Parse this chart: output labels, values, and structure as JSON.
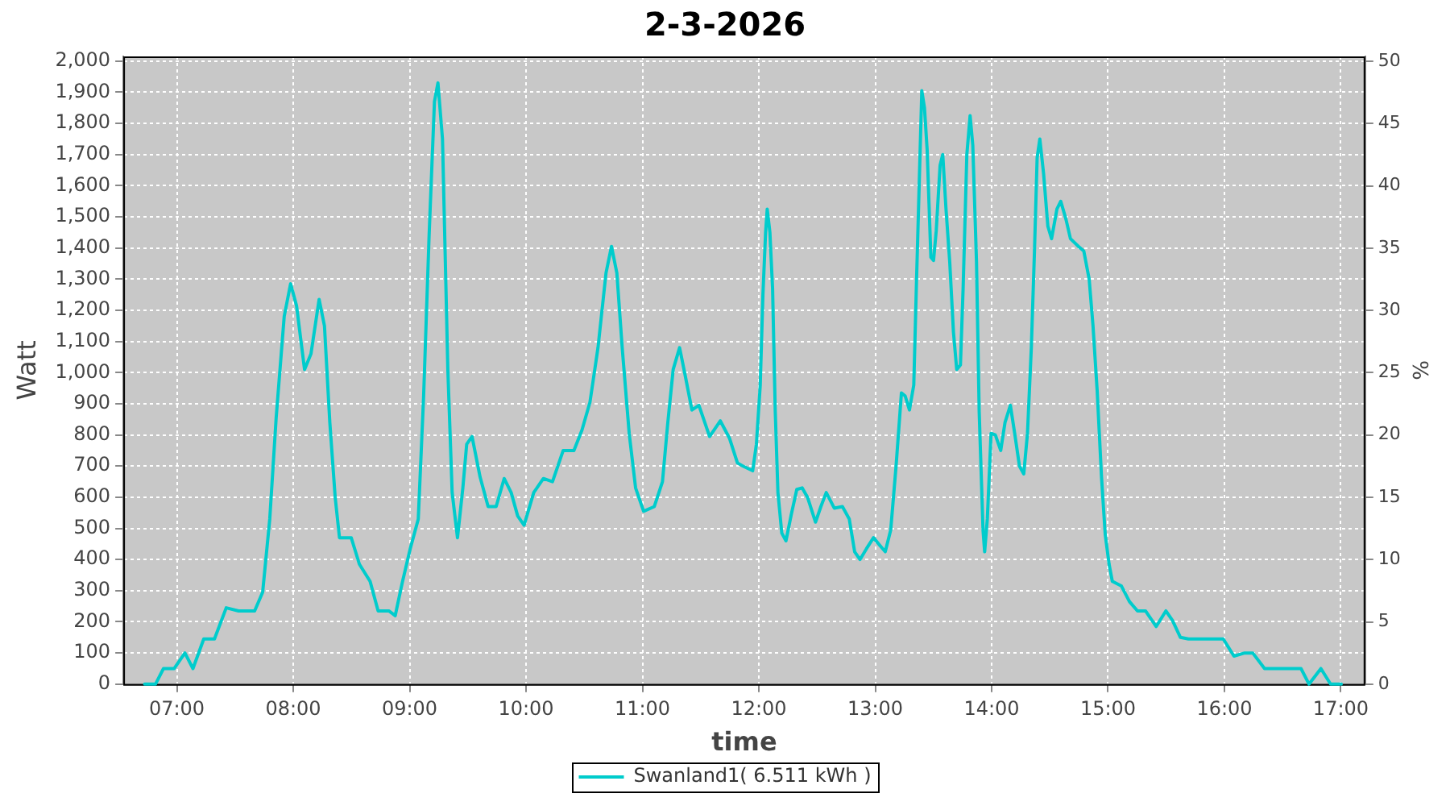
{
  "chart_data": {
    "type": "line",
    "title": "2-3-2026",
    "xlabel": "time",
    "ylabel": "Watt",
    "y2label": "%",
    "x": [
      6.723,
      6.816,
      6.885,
      6.977,
      7.069,
      7.138,
      7.231,
      7.323,
      7.424,
      7.53,
      7.668,
      7.737,
      7.798,
      7.853,
      7.922,
      7.977,
      8.028,
      8.097,
      8.152,
      8.222,
      8.268,
      8.314,
      8.36,
      8.397,
      8.452,
      8.498,
      8.568,
      8.66,
      8.729,
      8.821,
      8.876,
      8.936,
      9.005,
      9.074,
      9.12,
      9.167,
      9.213,
      9.243,
      9.282,
      9.328,
      9.365,
      9.411,
      9.457,
      9.49,
      9.536,
      9.605,
      9.674,
      9.743,
      9.812,
      9.872,
      9.928,
      9.983,
      10.066,
      10.149,
      10.227,
      10.319,
      10.411,
      10.48,
      10.549,
      10.618,
      10.687,
      10.734,
      10.78,
      10.826,
      10.886,
      10.941,
      11.01,
      11.102,
      11.172,
      11.218,
      11.264,
      11.319,
      11.365,
      11.425,
      11.485,
      11.577,
      11.669,
      11.747,
      11.816,
      11.863,
      11.947,
      11.979,
      12.012,
      12.035,
      12.058,
      12.072,
      12.095,
      12.118,
      12.141,
      12.164,
      12.197,
      12.233,
      12.279,
      12.326,
      12.372,
      12.418,
      12.487,
      12.533,
      12.579,
      12.648,
      12.718,
      12.777,
      12.823,
      12.869,
      12.925,
      12.985,
      13.04,
      13.086,
      13.133,
      13.179,
      13.225,
      13.257,
      13.294,
      13.331,
      13.354,
      13.377,
      13.4,
      13.423,
      13.446,
      13.478,
      13.501,
      13.524,
      13.557,
      13.58,
      13.608,
      13.64,
      13.672,
      13.7,
      13.732,
      13.755,
      13.787,
      13.815,
      13.838,
      13.87,
      13.893,
      13.926,
      13.94,
      13.963,
      13.995,
      14.032,
      14.078,
      14.115,
      14.161,
      14.198,
      14.239,
      14.276,
      14.308,
      14.341,
      14.368,
      14.391,
      14.414,
      14.446,
      14.483,
      14.515,
      14.561,
      14.594,
      14.64,
      14.677,
      14.746,
      14.792,
      14.838,
      14.871,
      14.907,
      14.944,
      14.976,
      15.009,
      15.037,
      15.115,
      15.184,
      15.253,
      15.322,
      15.414,
      15.497,
      15.553,
      15.622,
      15.691,
      15.875,
      15.99,
      16.082,
      16.174,
      16.243,
      16.345,
      16.52,
      16.658,
      16.727,
      16.829,
      16.912,
      17.004
    ],
    "series": [
      {
        "name": "Swanland1( 6.511 kWh )",
        "color": "#00cccc",
        "values": [
          0,
          0,
          50,
          50,
          100,
          50,
          145,
          145,
          245,
          235,
          235,
          295,
          530,
          855,
          1180,
          1285,
          1215,
          1010,
          1060,
          1235,
          1150,
          840,
          600,
          470,
          470,
          470,
          385,
          330,
          235,
          235,
          220,
          325,
          435,
          530,
          925,
          1440,
          1870,
          1930,
          1750,
          1010,
          615,
          470,
          630,
          770,
          795,
          665,
          570,
          570,
          660,
          615,
          540,
          510,
          615,
          660,
          650,
          750,
          750,
          815,
          905,
          1080,
          1320,
          1405,
          1320,
          1080,
          805,
          630,
          555,
          570,
          650,
          840,
          1010,
          1080,
          995,
          880,
          895,
          795,
          845,
          790,
          710,
          700,
          685,
          770,
          960,
          1250,
          1450,
          1525,
          1450,
          1270,
          875,
          615,
          485,
          460,
          545,
          625,
          630,
          600,
          520,
          570,
          615,
          565,
          570,
          530,
          425,
          400,
          435,
          470,
          445,
          425,
          495,
          700,
          935,
          925,
          880,
          960,
          1285,
          1595,
          1905,
          1850,
          1715,
          1370,
          1360,
          1455,
          1665,
          1700,
          1525,
          1355,
          1130,
          1010,
          1025,
          1270,
          1700,
          1825,
          1730,
          1355,
          875,
          495,
          425,
          530,
          805,
          800,
          750,
          840,
          895,
          805,
          700,
          675,
          805,
          1080,
          1390,
          1690,
          1750,
          1640,
          1470,
          1430,
          1525,
          1550,
          1490,
          1430,
          1405,
          1390,
          1300,
          1150,
          940,
          665,
          480,
          385,
          330,
          315,
          265,
          235,
          235,
          185,
          235,
          205,
          150,
          145,
          145,
          145,
          90,
          100,
          100,
          50,
          50,
          50,
          0,
          50,
          0,
          0
        ]
      }
    ],
    "xlim": [
      6.54,
      17.21
    ],
    "xticks": [
      {
        "value": 7,
        "label": "07:00"
      },
      {
        "value": 8,
        "label": "08:00"
      },
      {
        "value": 9,
        "label": "09:00"
      },
      {
        "value": 10,
        "label": "10:00"
      },
      {
        "value": 11,
        "label": "11:00"
      },
      {
        "value": 12,
        "label": "12:00"
      },
      {
        "value": 13,
        "label": "13:00"
      },
      {
        "value": 14,
        "label": "14:00"
      },
      {
        "value": 15,
        "label": "15:00"
      },
      {
        "value": 16,
        "label": "16:00"
      },
      {
        "value": 17,
        "label": "17:00"
      }
    ],
    "ylim": [
      0,
      2015
    ],
    "yticks": [
      0,
      100,
      200,
      300,
      400,
      500,
      600,
      700,
      800,
      900,
      {
        "value": 1000,
        "label": "1,000"
      },
      {
        "value": 1100,
        "label": "1,100"
      },
      {
        "value": 1200,
        "label": "1,200"
      },
      {
        "value": 1300,
        "label": "1,300"
      },
      {
        "value": 1400,
        "label": "1,400"
      },
      {
        "value": 1500,
        "label": "1,500"
      },
      {
        "value": 1600,
        "label": "1,600"
      },
      {
        "value": 1700,
        "label": "1,700"
      },
      {
        "value": 1800,
        "label": "1,800"
      },
      {
        "value": 1900,
        "label": "1,900"
      },
      {
        "value": 2000,
        "label": "2,000"
      }
    ],
    "y2lim": [
      0,
      50.4
    ],
    "y2ticks": [
      0,
      5,
      10,
      15,
      20,
      25,
      30,
      35,
      40,
      45,
      50
    ],
    "grid": true,
    "legend": "bottom",
    "marker": "none",
    "line_style": "solid"
  }
}
